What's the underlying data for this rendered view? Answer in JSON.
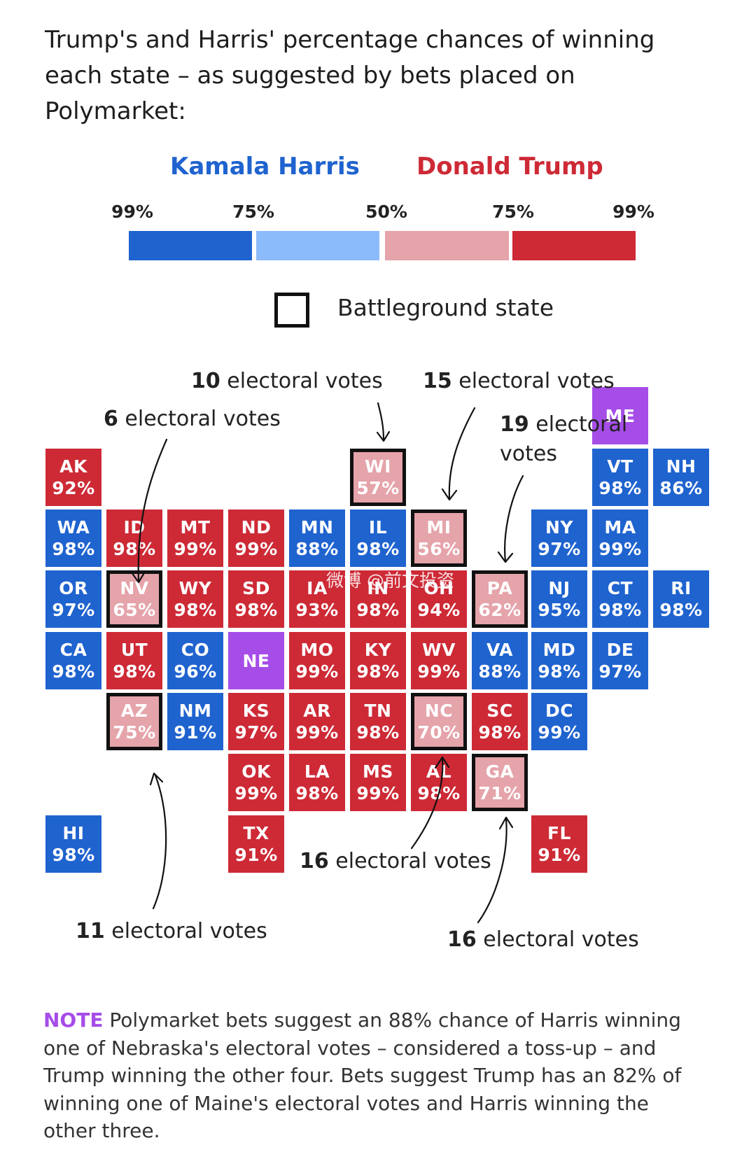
{
  "title": "Trump's and Harris' percentage chances of winning each state – as suggested by bets placed on Polymarket:",
  "legend": {
    "harris_label": "Kamala Harris",
    "trump_label": "Donald Trump",
    "ticks": [
      "99%",
      "75%",
      "50%",
      "75%",
      "99%"
    ],
    "colors": {
      "harris_strong": "#1f63cf",
      "harris_lean": "#8cbbfb",
      "trump_lean": "#e5a3aa",
      "trump_strong": "#cd2a36",
      "split": "#a64de8"
    },
    "battleground_label": "Battleground state"
  },
  "states": [
    {
      "abbr": "ME",
      "pct": "",
      "cat": "split",
      "battle": false
    },
    {
      "abbr": "AK",
      "pct": "92%",
      "cat": "trump_strong",
      "battle": false
    },
    {
      "abbr": "WI",
      "pct": "57%",
      "cat": "trump_lean",
      "battle": true
    },
    {
      "abbr": "VT",
      "pct": "98%",
      "cat": "harris_strong",
      "battle": false
    },
    {
      "abbr": "NH",
      "pct": "86%",
      "cat": "harris_strong",
      "battle": false
    },
    {
      "abbr": "WA",
      "pct": "98%",
      "cat": "harris_strong",
      "battle": false
    },
    {
      "abbr": "ID",
      "pct": "98%",
      "cat": "trump_strong",
      "battle": false
    },
    {
      "abbr": "MT",
      "pct": "99%",
      "cat": "trump_strong",
      "battle": false
    },
    {
      "abbr": "ND",
      "pct": "99%",
      "cat": "trump_strong",
      "battle": false
    },
    {
      "abbr": "MN",
      "pct": "88%",
      "cat": "harris_strong",
      "battle": false
    },
    {
      "abbr": "IL",
      "pct": "98%",
      "cat": "harris_strong",
      "battle": false
    },
    {
      "abbr": "MI",
      "pct": "56%",
      "cat": "trump_lean",
      "battle": true
    },
    {
      "abbr": "NY",
      "pct": "97%",
      "cat": "harris_strong",
      "battle": false
    },
    {
      "abbr": "MA",
      "pct": "99%",
      "cat": "harris_strong",
      "battle": false
    },
    {
      "abbr": "OR",
      "pct": "97%",
      "cat": "harris_strong",
      "battle": false
    },
    {
      "abbr": "NV",
      "pct": "65%",
      "cat": "trump_lean",
      "battle": true
    },
    {
      "abbr": "WY",
      "pct": "98%",
      "cat": "trump_strong",
      "battle": false
    },
    {
      "abbr": "SD",
      "pct": "98%",
      "cat": "trump_strong",
      "battle": false
    },
    {
      "abbr": "IA",
      "pct": "93%",
      "cat": "trump_strong",
      "battle": false
    },
    {
      "abbr": "IN",
      "pct": "98%",
      "cat": "trump_strong",
      "battle": false
    },
    {
      "abbr": "OH",
      "pct": "94%",
      "cat": "trump_strong",
      "battle": false
    },
    {
      "abbr": "PA",
      "pct": "62%",
      "cat": "trump_lean",
      "battle": true
    },
    {
      "abbr": "NJ",
      "pct": "95%",
      "cat": "harris_strong",
      "battle": false
    },
    {
      "abbr": "CT",
      "pct": "98%",
      "cat": "harris_strong",
      "battle": false
    },
    {
      "abbr": "RI",
      "pct": "98%",
      "cat": "harris_strong",
      "battle": false
    },
    {
      "abbr": "CA",
      "pct": "98%",
      "cat": "harris_strong",
      "battle": false
    },
    {
      "abbr": "UT",
      "pct": "98%",
      "cat": "trump_strong",
      "battle": false
    },
    {
      "abbr": "CO",
      "pct": "96%",
      "cat": "harris_strong",
      "battle": false
    },
    {
      "abbr": "NE",
      "pct": "",
      "cat": "split",
      "battle": false
    },
    {
      "abbr": "MO",
      "pct": "99%",
      "cat": "trump_strong",
      "battle": false
    },
    {
      "abbr": "KY",
      "pct": "98%",
      "cat": "trump_strong",
      "battle": false
    },
    {
      "abbr": "WV",
      "pct": "99%",
      "cat": "trump_strong",
      "battle": false
    },
    {
      "abbr": "VA",
      "pct": "88%",
      "cat": "harris_strong",
      "battle": false
    },
    {
      "abbr": "MD",
      "pct": "98%",
      "cat": "harris_strong",
      "battle": false
    },
    {
      "abbr": "DE",
      "pct": "97%",
      "cat": "harris_strong",
      "battle": false
    },
    {
      "abbr": "AZ",
      "pct": "75%",
      "cat": "trump_lean",
      "battle": true
    },
    {
      "abbr": "NM",
      "pct": "91%",
      "cat": "harris_strong",
      "battle": false
    },
    {
      "abbr": "KS",
      "pct": "97%",
      "cat": "trump_strong",
      "battle": false
    },
    {
      "abbr": "AR",
      "pct": "99%",
      "cat": "trump_strong",
      "battle": false
    },
    {
      "abbr": "TN",
      "pct": "98%",
      "cat": "trump_strong",
      "battle": false
    },
    {
      "abbr": "NC",
      "pct": "70%",
      "cat": "trump_lean",
      "battle": true
    },
    {
      "abbr": "SC",
      "pct": "98%",
      "cat": "trump_strong",
      "battle": false
    },
    {
      "abbr": "DC",
      "pct": "99%",
      "cat": "harris_strong",
      "battle": false
    },
    {
      "abbr": "OK",
      "pct": "99%",
      "cat": "trump_strong",
      "battle": false
    },
    {
      "abbr": "LA",
      "pct": "98%",
      "cat": "trump_strong",
      "battle": false
    },
    {
      "abbr": "MS",
      "pct": "99%",
      "cat": "trump_strong",
      "battle": false
    },
    {
      "abbr": "AL",
      "pct": "98%",
      "cat": "trump_strong",
      "battle": false
    },
    {
      "abbr": "GA",
      "pct": "71%",
      "cat": "trump_lean",
      "battle": true
    },
    {
      "abbr": "HI",
      "pct": "98%",
      "cat": "harris_strong",
      "battle": false
    },
    {
      "abbr": "TX",
      "pct": "91%",
      "cat": "trump_strong",
      "battle": false
    },
    {
      "abbr": "FL",
      "pct": "91%",
      "cat": "trump_strong",
      "battle": false
    }
  ],
  "annotations": [
    {
      "id": "wi",
      "num": "10",
      "text": " electoral votes"
    },
    {
      "id": "mi",
      "num": "15",
      "text": " electoral votes"
    },
    {
      "id": "nv",
      "num": "6",
      "text": " electoral votes"
    },
    {
      "id": "pa",
      "num": "19",
      "text": " electoral votes"
    },
    {
      "id": "nc",
      "num": "16",
      "text": " electoral votes"
    },
    {
      "id": "az",
      "num": "11",
      "text": " electoral votes"
    },
    {
      "id": "ga",
      "num": "16",
      "text": " electoral votes"
    }
  ],
  "note": {
    "tag": "NOTE",
    "text": " Polymarket bets suggest an 88% chance of Harris winning one of Nebraska's electoral votes – considered a toss-up – and Trump winning the other four. Bets suggest Trump has an 82% of winning one of Maine's electoral votes and Harris winning the other three."
  },
  "watermark": "微博 @前文投资"
}
